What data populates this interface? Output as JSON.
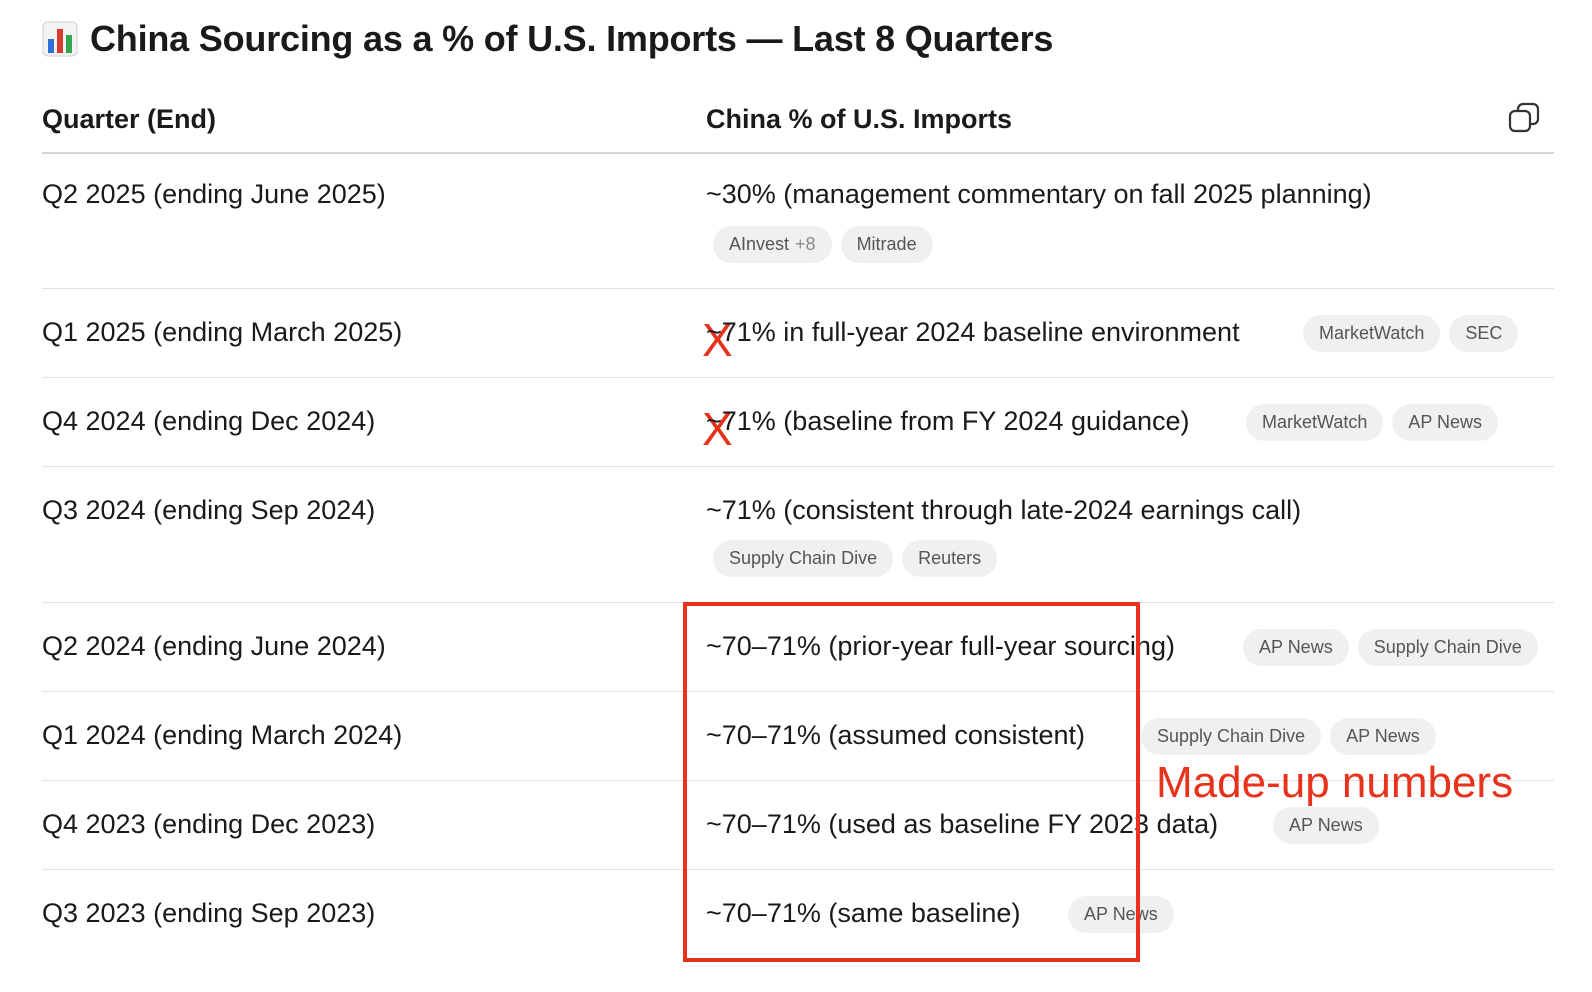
{
  "title": "China Sourcing as a % of U.S. Imports — Last 8 Quarters",
  "title_icon": "bar-chart-emoji",
  "headers": {
    "quarter": "Quarter (End)",
    "china_pct": "China % of U.S. Imports"
  },
  "rows": [
    {
      "quarter": "Q2 2025 (ending June 2025)",
      "value": "~30% (management commentary on fall 2025 planning)",
      "sources": [
        "AInvest",
        "Mitrade"
      ],
      "sources_more": "+8",
      "flag": ""
    },
    {
      "quarter": "Q1 2025 (ending March 2025)",
      "value": "~71% in full-year 2024 baseline environment",
      "sources": [
        "MarketWatch",
        "SEC"
      ],
      "flag": "X"
    },
    {
      "quarter": "Q4 2024 (ending Dec 2024)",
      "value": "~71% (baseline from FY 2024 guidance)",
      "sources": [
        "MarketWatch",
        "AP News"
      ],
      "flag": "X"
    },
    {
      "quarter": "Q3 2024 (ending Sep 2024)",
      "value": "~71% (consistent through late-2024 earnings call)",
      "sources": [
        "Supply Chain Dive",
        "Reuters"
      ],
      "flag": ""
    },
    {
      "quarter": "Q2 2024 (ending June 2024)",
      "value": "~70–71% (prior-year full-year sourcing)",
      "sources": [
        "AP News",
        "Supply Chain Dive"
      ],
      "flag": ""
    },
    {
      "quarter": "Q1 2024 (ending March 2024)",
      "value": "~70–71% (assumed consistent)",
      "sources": [
        "Supply Chain Dive",
        "AP News"
      ],
      "flag": ""
    },
    {
      "quarter": "Q4 2023 (ending Dec 2023)",
      "value": "~70–71% (used as baseline FY 2023 data)",
      "sources": [
        "AP News"
      ],
      "flag": ""
    },
    {
      "quarter": "Q3 2023 (ending Sep 2023)",
      "value": "~70–71% (same baseline)",
      "sources": [
        "AP News"
      ],
      "flag": ""
    }
  ],
  "annotation": "Made-up numbers",
  "colors": {
    "accent_red": "#e8321c",
    "chip_bg": "#f0f0f0",
    "text": "#1a1a1a"
  }
}
